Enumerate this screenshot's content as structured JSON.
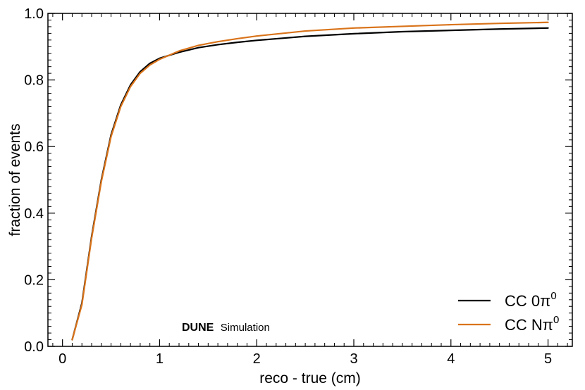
{
  "chart_data": {
    "type": "line",
    "title": "",
    "xlabel": "reco - true (cm)",
    "ylabel": "fraction of events",
    "xlim": [
      -0.15,
      5.25
    ],
    "ylim": [
      0.0,
      1.0
    ],
    "x_ticks": [
      "0",
      "1",
      "2",
      "3",
      "4",
      "5"
    ],
    "y_ticks": [
      "0.0",
      "0.2",
      "0.4",
      "0.6",
      "0.8",
      "1.0"
    ],
    "grid": false,
    "legend_position": "bottom-right",
    "watermark_bold": "DUNE",
    "watermark_text": "Simulation",
    "series": [
      {
        "name": "CC 0π⁰",
        "legend_base": "CC 0π",
        "legend_sup": "0",
        "color": "#000000",
        "x": [
          0.1,
          0.2,
          0.3,
          0.4,
          0.5,
          0.6,
          0.7,
          0.8,
          0.9,
          1.0,
          1.2,
          1.4,
          1.6,
          1.8,
          2.0,
          2.5,
          3.0,
          3.5,
          4.0,
          4.5,
          5.0
        ],
        "y": [
          0.02,
          0.13,
          0.33,
          0.5,
          0.635,
          0.725,
          0.785,
          0.825,
          0.85,
          0.865,
          0.883,
          0.897,
          0.906,
          0.913,
          0.919,
          0.931,
          0.939,
          0.945,
          0.949,
          0.953,
          0.956
        ]
      },
      {
        "name": "CC Nπ⁰",
        "legend_base": "CC Nπ",
        "legend_sup": "0",
        "color": "#d9731a",
        "x": [
          0.1,
          0.2,
          0.3,
          0.4,
          0.5,
          0.6,
          0.7,
          0.8,
          0.9,
          1.0,
          1.2,
          1.4,
          1.6,
          1.8,
          2.0,
          2.5,
          3.0,
          3.5,
          4.0,
          4.5,
          5.0
        ],
        "y": [
          0.02,
          0.125,
          0.325,
          0.495,
          0.63,
          0.72,
          0.78,
          0.82,
          0.845,
          0.862,
          0.887,
          0.904,
          0.915,
          0.924,
          0.932,
          0.947,
          0.956,
          0.961,
          0.966,
          0.97,
          0.973
        ]
      }
    ]
  }
}
